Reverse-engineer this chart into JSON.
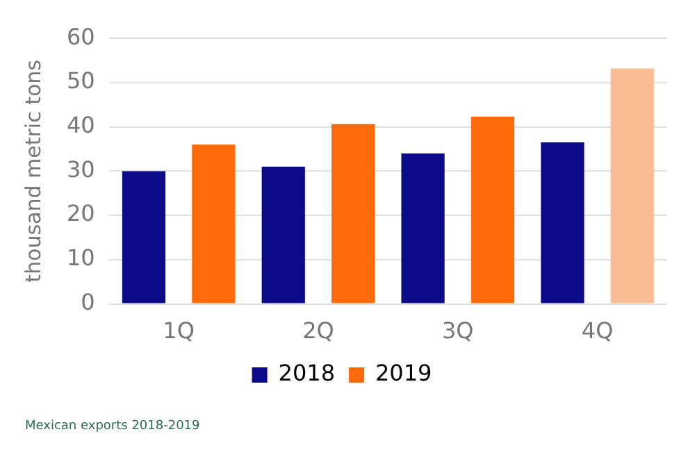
{
  "chart_data": {
    "type": "bar",
    "ylabel": "thousand metric tons",
    "categories": [
      "1Q",
      "2Q",
      "3Q",
      "4Q"
    ],
    "series": [
      {
        "name": "2018",
        "color": "#0b0b8a",
        "values": [
          30,
          31,
          34,
          36.5
        ]
      },
      {
        "name": "2019",
        "color": "#ff6a0a",
        "colors": [
          "#ff6a0a",
          "#ff6a0a",
          "#ff6a0a",
          "#fbbd94"
        ],
        "values": [
          36,
          40.6,
          42.3,
          53.2
        ]
      }
    ],
    "ylim": [
      0,
      60
    ],
    "yticks": [
      0,
      10,
      20,
      30,
      40,
      50,
      60
    ],
    "grid": "y",
    "legend": "bottom",
    "annotations": [
      "Mexican exports 2018-2019"
    ]
  }
}
